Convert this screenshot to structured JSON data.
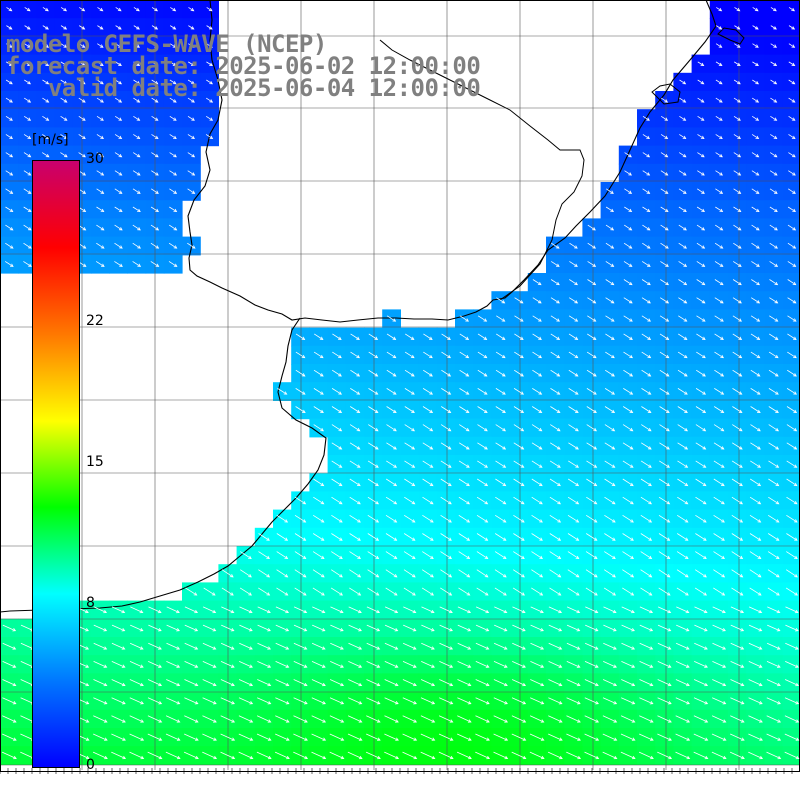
{
  "title": {
    "line1": "modelo GEFS-WAVE (NCEP)",
    "line2": "forecast date: 2025-06-02 12:00:00",
    "line3": "   valid date: 2025-06-04 12:00:00"
  },
  "colorbar": {
    "unit": "[m/s]",
    "ticks": [
      {
        "value": 30,
        "label": "30"
      },
      {
        "value": 22,
        "label": "22"
      },
      {
        "value": 15,
        "label": "15"
      },
      {
        "value": 8,
        "label": "8"
      },
      {
        "value": 0,
        "label": "0"
      }
    ],
    "min": 0,
    "max": 30,
    "colors": [
      "#0000ff",
      "#0078ff",
      "#00ffff",
      "#00ff00",
      "#ffff00",
      "#ff7800",
      "#ff0000",
      "#c8006e"
    ]
  },
  "map": {
    "lon_range": [
      -55,
      -44
    ],
    "lat_range": [
      -37,
      -22
    ],
    "wind_direction": "northwest-to-southeast (arrows pointing to southeast)",
    "ocean_colors": {
      "north": "#0a50f0",
      "mid": "#1ea6ff",
      "south_mid": "#00e6ff",
      "south": "#00f070"
    }
  }
}
